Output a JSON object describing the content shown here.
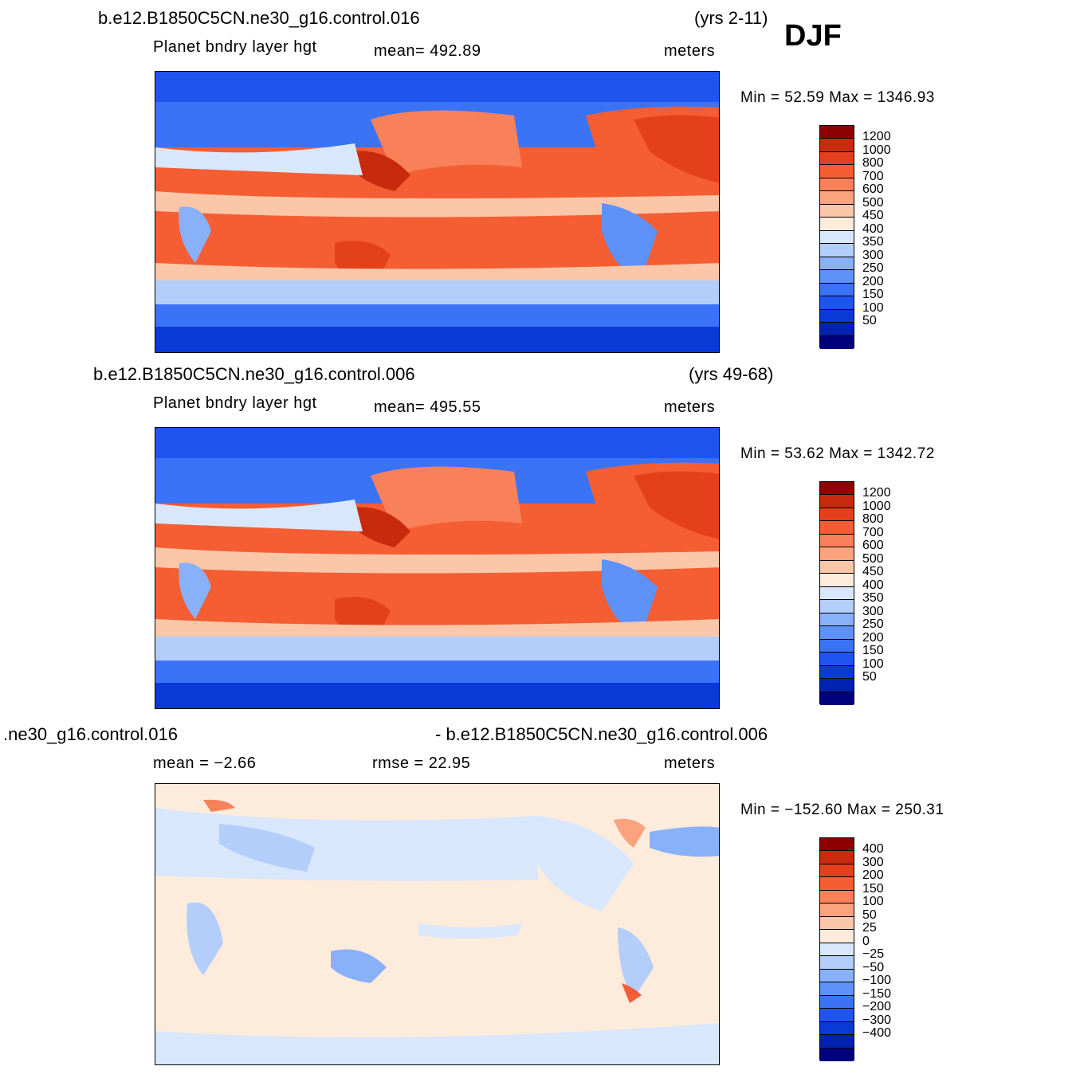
{
  "season": "DJF",
  "colors": {
    "abs": [
      "#00007f",
      "#0022b0",
      "#0a3ad6",
      "#1f55ef",
      "#3b73f7",
      "#5e92f9",
      "#88b1fa",
      "#b3cefb",
      "#d9e7fd",
      "#fdebdc",
      "#fcc7a8",
      "#fba27f",
      "#f9815a",
      "#f55d33",
      "#e4401c",
      "#c82a0e",
      "#8e0000"
    ],
    "diff": [
      "#00007f",
      "#0022b0",
      "#0a3ad6",
      "#1f55ef",
      "#3b73f7",
      "#5e92f9",
      "#88b1fa",
      "#b3cefb",
      "#d9e7fd",
      "#fdebdc",
      "#fcc7a8",
      "#fba27f",
      "#f9815a",
      "#f55d33",
      "#e4401c",
      "#c82a0e",
      "#8e0000"
    ]
  },
  "panels": [
    {
      "case": "b.e12.B1850C5CN.ne30_g16.control.016",
      "years": "(yrs 2-11)",
      "variable": "Planet  bndry  layer  hgt",
      "stat": "mean=  492.89",
      "units": "meters",
      "minmax": "Min  =    52.59  Max  =  1346.93",
      "colorbar_labels": [
        "1200",
        "1000",
        "800",
        "700",
        "600",
        "500",
        "450",
        "400",
        "350",
        "300",
        "250",
        "200",
        "150",
        "100",
        "50"
      ]
    },
    {
      "case": "b.e12.B1850C5CN.ne30_g16.control.006",
      "years": "(yrs 49-68)",
      "variable": "Planet  bndry  layer  hgt",
      "stat": "mean=  495.55",
      "units": "meters",
      "minmax": "Min  =    53.62  Max  =  1342.72",
      "colorbar_labels": [
        "1200",
        "1000",
        "800",
        "700",
        "600",
        "500",
        "450",
        "400",
        "350",
        "300",
        "250",
        "200",
        "150",
        "100",
        "50"
      ]
    },
    {
      "case": ".ne30_g16.control.016",
      "case_right": "- b.e12.B1850C5CN.ne30_g16.control.006",
      "stat_left": "mean  =    −2.66",
      "stat": "rmse  =    22.95",
      "units": "meters",
      "minmax": "Min  =  −152.60  Max  =  250.31",
      "colorbar_labels": [
        "400",
        "300",
        "200",
        "150",
        "100",
        "50",
        "25",
        "0",
        "−25",
        "−50",
        "−100",
        "−150",
        "−200",
        "−300",
        "−400"
      ]
    }
  ]
}
